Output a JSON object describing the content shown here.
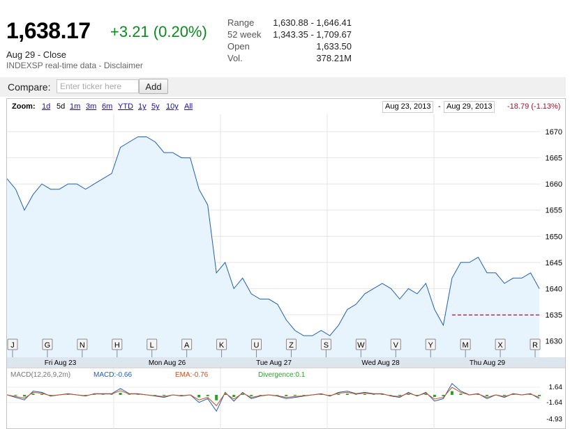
{
  "quote": {
    "price": "1,638.17",
    "change": "+3.21 (0.20%)",
    "date_status": "Aug 29 - Close",
    "source": "INDEXSP real-time data - Disclaimer"
  },
  "stats": [
    {
      "label": "Range",
      "value": "1,630.88 - 1,646.41"
    },
    {
      "label": "52 week",
      "value": "1,343.35 - 1,709.67"
    },
    {
      "label": "Open",
      "value": "1,633.50"
    },
    {
      "label": "Vol.",
      "value": "378.21M"
    }
  ],
  "compare": {
    "label": "Compare:",
    "placeholder": "Enter ticker here",
    "add_label": "Add"
  },
  "zoom": {
    "label": "Zoom:",
    "options": [
      "1d",
      "5d",
      "1m",
      "3m",
      "6m",
      "YTD",
      "1y",
      "5y",
      "10y",
      "All"
    ],
    "active": "5d"
  },
  "range": {
    "start": "Aug 23, 2013",
    "separator": "-",
    "end": "Aug 29, 2013",
    "change": "-18.79 (-1.13%)"
  },
  "colors": {
    "price_line": "#1f5fb4",
    "area_fill": "#e8f4fd",
    "up": "#0b8a1f",
    "down": "#a0102a",
    "macd_line": "#1f5fb4",
    "ema_line": "#c8501e",
    "divergence": "#2aa02a"
  },
  "chart_data": {
    "type": "line",
    "y_ticks": [
      1630,
      1635,
      1640,
      1645,
      1650,
      1655,
      1660,
      1665,
      1670
    ],
    "ylim": [
      1629,
      1672
    ],
    "x_labels": [
      "Fri Aug 23",
      "Mon Aug 26",
      "Tue Aug 27",
      "Wed Aug 28",
      "Thu Aug 29"
    ],
    "previous_close": 1634.96,
    "series": [
      {
        "values": [
          1661,
          1659,
          1655,
          1658,
          1660,
          1659,
          1659,
          1660,
          1660,
          1659,
          1660,
          1661,
          1662,
          1667,
          1668,
          1669,
          1669,
          1668,
          1666,
          1666,
          1665,
          1665,
          1659,
          1656,
          1643,
          1645,
          1640,
          1642,
          1639,
          1638,
          1638,
          1637,
          1634,
          1632,
          1631,
          1631,
          1632,
          1631,
          1633,
          1636,
          1637,
          1639,
          1640,
          1641,
          1640,
          1638,
          1640,
          1639,
          1641,
          1636,
          1633,
          1642,
          1645,
          1645,
          1646,
          1643,
          1643,
          1641,
          1642,
          1642,
          1643,
          1640
        ]
      }
    ]
  },
  "macd": {
    "label": "MACD(12,26,9,2m)",
    "macd": "MACD:-0.66",
    "ema": "EMA:-0.76",
    "divergence": "Divergence:0.1",
    "ticks": [
      "1.64",
      "-1.64",
      "-4.93"
    ]
  },
  "news_flags": [
    "J",
    "G",
    "N",
    "H",
    "L",
    "A",
    "K",
    "U",
    "Z",
    "S",
    "W",
    "V",
    "Y",
    "M",
    "X",
    "R"
  ]
}
